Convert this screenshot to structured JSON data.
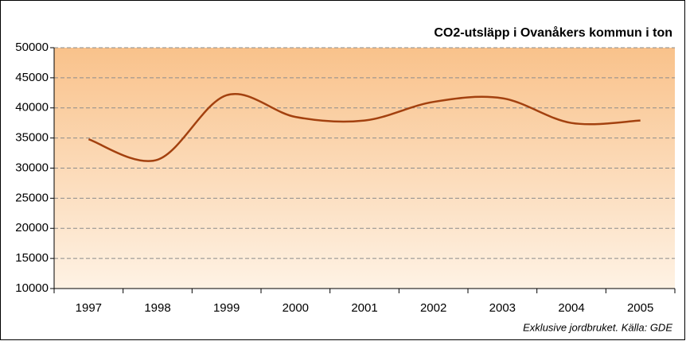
{
  "chart_data": {
    "type": "line",
    "title": "CO2-utsläpp i Ovanåkers kommun i ton",
    "note": "Exklusive jordbruket.  Källa: GDE",
    "categories": [
      "1997",
      "1998",
      "1999",
      "2000",
      "2001",
      "2002",
      "2003",
      "2004",
      "2005"
    ],
    "series": [
      {
        "name": "CO2-utsläpp",
        "color": "#a3410f",
        "values": [
          34800,
          31400,
          42100,
          38500,
          37900,
          41000,
          41600,
          37500,
          37900
        ]
      }
    ],
    "ylim": [
      10000,
      50000
    ],
    "yticks": [
      10000,
      15000,
      20000,
      25000,
      30000,
      35000,
      40000,
      45000,
      50000
    ],
    "grid": true,
    "smooth": true
  }
}
